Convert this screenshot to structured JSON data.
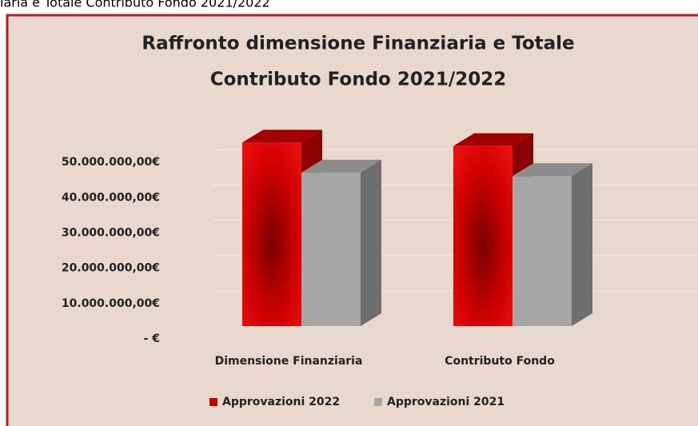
{
  "page_caption": "iaria e Totale Contributo Fondo 2021/2022",
  "chart_data": {
    "type": "bar3d",
    "title_lines": [
      "Raffronto dimensione Finanziaria e Totale",
      "Contributo Fondo 2021/2022"
    ],
    "categories": [
      "Dimensione Finanziaria",
      "Contributo Fondo"
    ],
    "series": [
      {
        "name": "Approvazioni 2022",
        "color": "#c00000",
        "values": [
          52000000,
          51000000
        ]
      },
      {
        "name": "Approvazioni 2021",
        "color": "#a6a6a6",
        "values": [
          43500000,
          42500000
        ]
      }
    ],
    "ylim": [
      0,
      60000000
    ],
    "yticks": [
      {
        "value": 0,
        "label": "-  €"
      },
      {
        "value": 10000000,
        "label": "10.000.000,00€"
      },
      {
        "value": 20000000,
        "label": "20.000.000,00€"
      },
      {
        "value": 30000000,
        "label": "30.000.000,00€"
      },
      {
        "value": 40000000,
        "label": "40.000.000,00€"
      },
      {
        "value": 50000000,
        "label": "50.000.000,00€"
      }
    ],
    "grid": true,
    "legend": "bottom"
  }
}
